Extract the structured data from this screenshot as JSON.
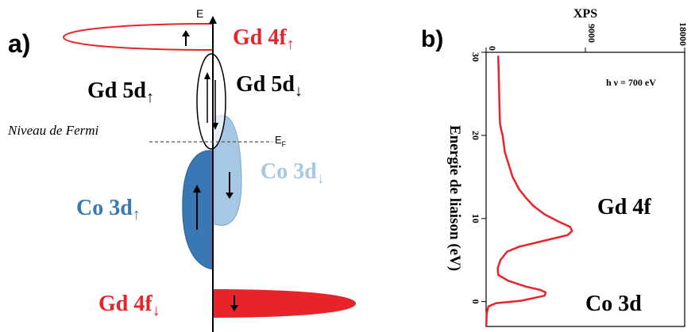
{
  "panel_a": {
    "label": "a)",
    "axis_label": "E",
    "fermi_label": "Niveau de Fermi",
    "ef_main": "E",
    "ef_sub": "F",
    "gd4f_up": {
      "text": "Gd 4f",
      "arrow": "↑"
    },
    "gd5d_up": {
      "text": "Gd 5d",
      "arrow": "↑"
    },
    "gd5d_down": {
      "text": "Gd 5d",
      "arrow": "↓"
    },
    "co3d_down": {
      "text": "Co 3d",
      "arrow": "↓"
    },
    "co3d_up": {
      "text": "Co 3d",
      "arrow": "↑"
    },
    "gd4f_down": {
      "text": "Gd 4f",
      "arrow": "↓"
    },
    "colors": {
      "gd": "#e8242b",
      "co_up": "#3a78b5",
      "co_down": "#a7c8e4",
      "line": "#000000"
    }
  },
  "panel_b": {
    "label": "b)",
    "annotation_photon": "h ν = 700 eV",
    "annotation_gd": "Gd 4f",
    "annotation_co": "Co 3d",
    "chart_data": {
      "type": "line",
      "title": "XPS",
      "ylabel": "Energie de liaison (eV)",
      "xlim": [
        0,
        18000
      ],
      "ylim": [
        -3,
        30
      ],
      "x_ticks": [
        0,
        9000,
        18000
      ],
      "y_ticks": [
        0,
        10,
        20,
        30
      ],
      "series_color": "#e8242b",
      "x": [
        1100,
        1150,
        1200,
        1250,
        1400,
        1500,
        1700,
        2400,
        3000,
        3600,
        4300,
        5300,
        6600,
        7600,
        7800,
        7400,
        5200,
        3000,
        1900,
        1300,
        1050,
        1100,
        2000,
        3600,
        4900,
        5400,
        5300,
        3200,
        900,
        200,
        50,
        20
      ],
      "y": [
        29.5,
        27,
        24,
        21.5,
        20.5,
        20,
        18,
        15,
        13.5,
        12.5,
        11.5,
        10.5,
        9.6,
        9,
        8.5,
        8,
        7.3,
        6.6,
        6,
        5,
        4,
        3.2,
        2.5,
        1.8,
        1.4,
        1.1,
        0.7,
        0.1,
        -0.2,
        -0.6,
        -1.5,
        -2.8
      ]
    }
  }
}
